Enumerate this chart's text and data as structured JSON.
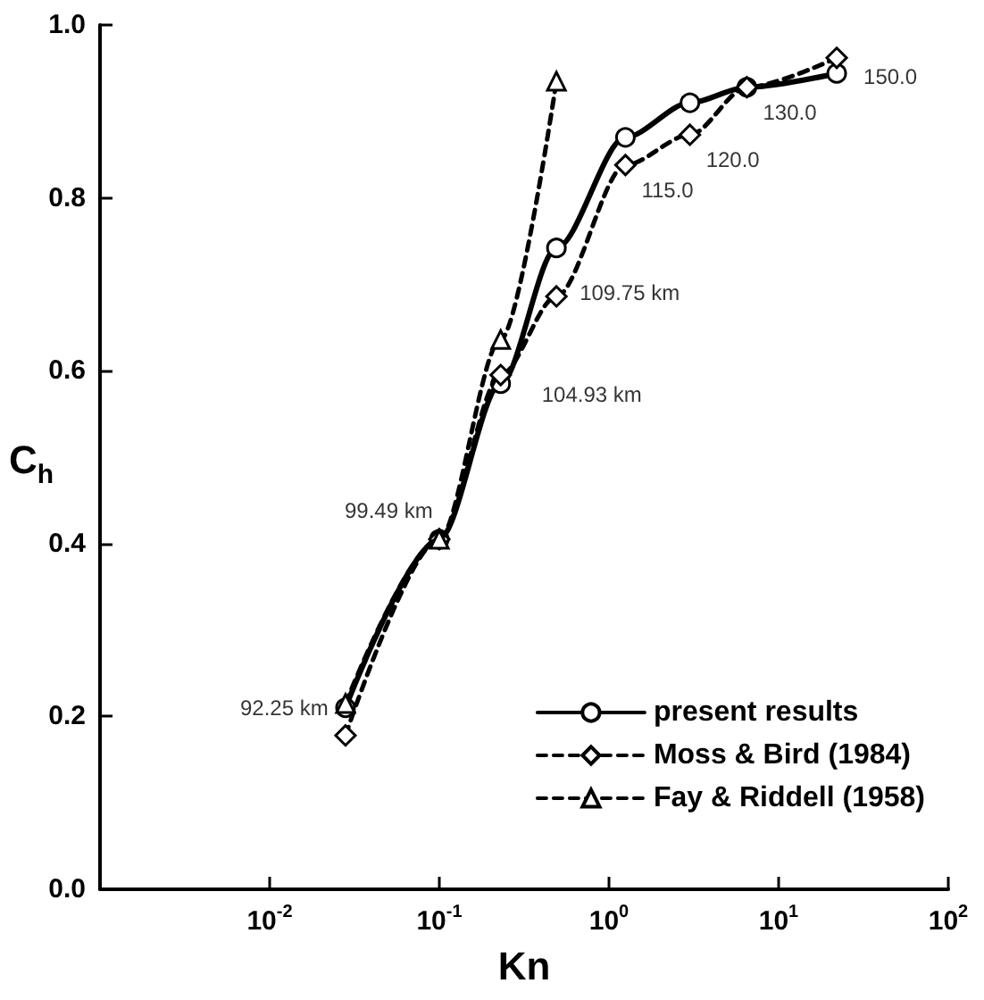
{
  "chart_data": {
    "type": "line",
    "xlabel": "Kn",
    "ylabel": "C$_{h}$",
    "log": "x",
    "xlim": [
      0.001,
      100
    ],
    "xticks": [
      {
        "value": 0.01,
        "label": "10$^{-2}$"
      },
      {
        "value": 0.1,
        "label": "10$^{-1}$"
      },
      {
        "value": 1,
        "label": "10$^{0}$"
      },
      {
        "value": 10,
        "label": "10$^{1}$"
      },
      {
        "value": 100,
        "label": "10$^{2}$"
      }
    ],
    "ylim": [
      0,
      1
    ],
    "yticks": [
      {
        "value": 0,
        "label": "0.0"
      },
      {
        "value": 0.2,
        "label": "0.2"
      },
      {
        "value": 0.4,
        "label": "0.4"
      },
      {
        "value": 0.6,
        "label": "0.6"
      },
      {
        "value": 0.8,
        "label": "0.8"
      },
      {
        "value": 1,
        "label": "1.0"
      }
    ],
    "grid": false,
    "legend": "bottom right",
    "series": [
      {
        "name": "present results",
        "color": "#000000",
        "marker": "circle",
        "line_style": "solid",
        "x": [
          0.028,
          0.1,
          0.23,
          0.49,
          1.25,
          3,
          6.5,
          22
        ],
        "values": [
          0.21,
          0.405,
          0.585,
          0.742,
          0.87,
          0.91,
          0.928,
          0.944
        ]
      },
      {
        "name": "Moss & Bird (1984)",
        "color": "#000000",
        "marker": "diamond",
        "line_style": "dashed",
        "x": [
          0.028,
          0.1,
          0.23,
          0.49,
          1.25,
          3,
          6.5,
          22
        ],
        "values": [
          0.178,
          0.405,
          0.595,
          0.686,
          0.838,
          0.873,
          0.928,
          0.962
        ]
      },
      {
        "name": "Fay & Riddell (1958)",
        "color": "#000000",
        "marker": "triangle",
        "line_style": "dashed",
        "x": [
          0.028,
          0.1,
          0.23,
          0.49
        ],
        "values": [
          0.215,
          0.405,
          0.636,
          0.935
        ]
      }
    ],
    "annotations": [
      {
        "text": "92.25 km",
        "x": 0.028,
        "y": 0.21
      },
      {
        "text": "99.49 km",
        "x": 0.1,
        "y": 0.405
      },
      {
        "text": "104.93 km",
        "x": 0.23,
        "y": 0.585
      },
      {
        "text": "109.75 km",
        "x": 0.49,
        "y": 0.686
      },
      {
        "text": "115.0",
        "x": 1.25,
        "y": 0.838
      },
      {
        "text": "120.0",
        "x": 3,
        "y": 0.873
      },
      {
        "text": "130.0",
        "x": 6.5,
        "y": 0.928
      },
      {
        "text": "150.0",
        "x": 22,
        "y": 0.944
      }
    ]
  }
}
